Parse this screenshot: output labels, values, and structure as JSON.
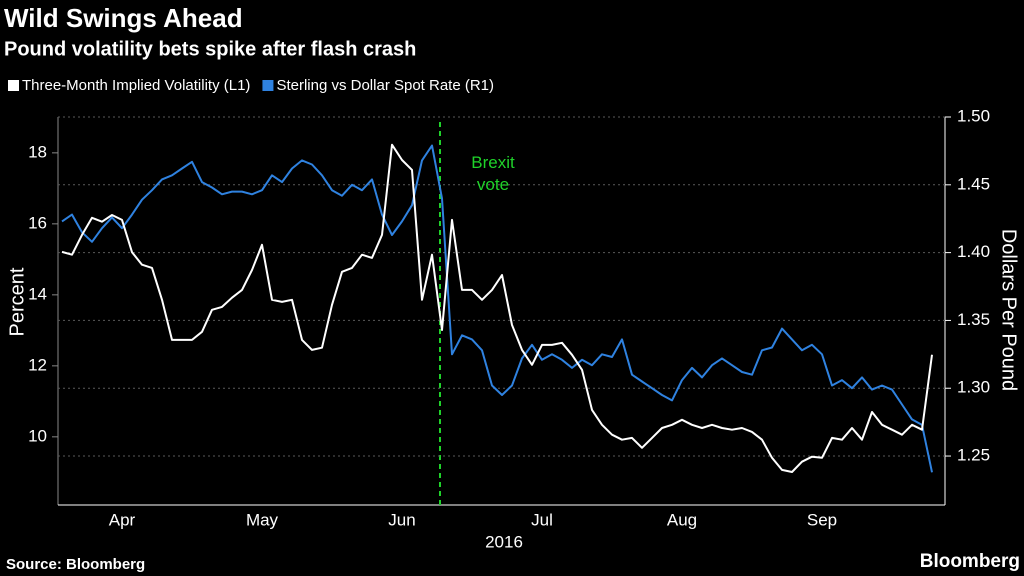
{
  "chart_data": {
    "type": "line",
    "title": "Wild Swings Ahead",
    "subtitle": "Pound volatility bets spike after flash crash",
    "ylabel": "Percent",
    "y2label": "Dollars Per Pound",
    "xlabel": "2016",
    "annotation": "Brexit vote",
    "source": "Source: Bloomberg",
    "brand": "Bloomberg",
    "grid": true,
    "legend": "top-left",
    "categories": [
      null,
      null,
      null,
      null,
      null,
      null,
      "Apr",
      null,
      null,
      null,
      null,
      null,
      null,
      null,
      null,
      null,
      null,
      null,
      null,
      null,
      "May",
      null,
      null,
      null,
      null,
      null,
      null,
      null,
      null,
      null,
      null,
      null,
      null,
      null,
      "Jun",
      null,
      null,
      null,
      null,
      null,
      null,
      null,
      null,
      null,
      null,
      null,
      null,
      null,
      "Jul",
      null,
      null,
      null,
      null,
      null,
      null,
      null,
      null,
      null,
      null,
      null,
      null,
      null,
      "Aug",
      null,
      null,
      null,
      null,
      null,
      null,
      null,
      null,
      null,
      null,
      null,
      null,
      null,
      "Sep",
      null,
      null,
      null,
      null,
      null,
      null,
      null,
      null,
      null,
      null,
      null
    ],
    "ylim": [
      8.08,
      19.01
    ],
    "yticks": [
      10,
      12,
      14,
      16,
      18
    ],
    "y2lim": [
      1.2139,
      1.5
    ],
    "y2ticks": [
      1.25,
      {
        "value": 1.3,
        "label": "1.30"
      },
      1.35,
      {
        "value": 1.4,
        "label": "1.40"
      },
      1.45,
      {
        "value": 1.5,
        "label": "1.50"
      }
    ],
    "series": [
      {
        "name": "Three-Month Implied Volatility (L1)",
        "color": "#ffffff",
        "values": [
          15.21,
          15.13,
          15.69,
          16.17,
          16.06,
          16.25,
          16.11,
          15.2,
          14.85,
          14.76,
          13.86,
          12.73,
          12.73,
          12.73,
          12.96,
          13.58,
          13.66,
          13.92,
          14.14,
          14.7,
          15.41,
          13.86,
          13.8,
          13.86,
          12.73,
          12.45,
          12.51,
          13.72,
          14.65,
          14.76,
          15.13,
          15.04,
          15.69,
          18.23,
          17.8,
          17.52,
          13.86,
          15.13,
          13.01,
          16.11,
          14.14,
          14.14,
          13.86,
          14.14,
          14.56,
          13.15,
          12.45,
          12.03,
          12.59,
          12.59,
          12.65,
          12.31,
          11.89,
          10.76,
          10.34,
          10.06,
          9.92,
          9.97,
          9.69,
          9.97,
          10.25,
          10.34,
          10.48,
          10.34,
          10.25,
          10.34,
          10.25,
          10.2,
          10.25,
          10.14,
          9.92,
          9.41,
          9.07,
          9.01,
          9.3,
          9.44,
          9.41,
          9.97,
          9.92,
          10.25,
          9.92,
          10.7,
          10.34,
          10.2,
          10.06,
          10.34,
          10.2,
          12.31
        ]
      },
      {
        "name": "Sterling vs Dollar Spot Rate (R1)",
        "color": "#2f82e0",
        "axis": "y2",
        "values": [
          1.423,
          1.428,
          1.415,
          1.408,
          1.418,
          1.426,
          1.418,
          1.428,
          1.439,
          1.446,
          1.454,
          1.457,
          1.462,
          1.467,
          1.452,
          1.448,
          1.443,
          1.445,
          1.445,
          1.443,
          1.446,
          1.457,
          1.452,
          1.462,
          1.468,
          1.465,
          1.457,
          1.446,
          1.442,
          1.45,
          1.446,
          1.454,
          1.428,
          1.413,
          1.423,
          1.435,
          1.468,
          1.479,
          1.44,
          1.325,
          1.339,
          1.336,
          1.328,
          1.302,
          1.295,
          1.302,
          1.322,
          1.332,
          1.321,
          1.325,
          1.321,
          1.315,
          1.321,
          1.317,
          1.325,
          1.323,
          1.336,
          1.31,
          1.305,
          1.3,
          1.295,
          1.291,
          1.306,
          1.315,
          1.308,
          1.317,
          1.322,
          1.317,
          1.312,
          1.31,
          1.328,
          1.33,
          1.344,
          1.336,
          1.328,
          1.332,
          1.325,
          1.302,
          1.306,
          1.3,
          1.308,
          1.299,
          1.302,
          1.299,
          1.288,
          1.277,
          1.273,
          1.238
        ]
      }
    ]
  }
}
